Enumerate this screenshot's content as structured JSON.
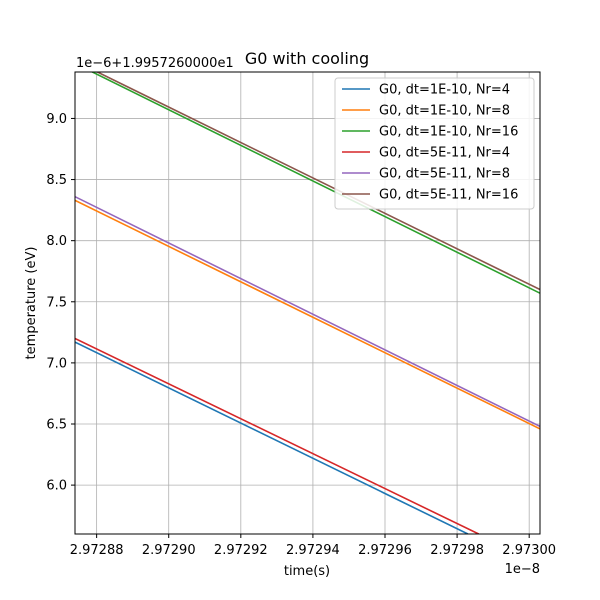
{
  "chart_data": {
    "type": "line",
    "title": "G0 with cooling",
    "xlabel": "time(s)",
    "ylabel": "temperature (eV)",
    "x_offset_label": "1e−8",
    "y_offset_label": "1e−6+1.9957260000e1",
    "xlim": [
      2.972874,
      2.973003
    ],
    "ylim": [
      5.6,
      9.38
    ],
    "x_ticks": [
      2.97288,
      2.9729,
      2.97292,
      2.97294,
      2.97296,
      2.97298,
      2.973
    ],
    "x_tick_labels": [
      "2.97288",
      "2.97290",
      "2.97292",
      "2.97294",
      "2.97296",
      "2.97298",
      "2.97300"
    ],
    "y_ticks": [
      6.0,
      6.5,
      7.0,
      7.5,
      8.0,
      8.5,
      9.0
    ],
    "y_tick_labels": [
      "6.0",
      "6.5",
      "7.0",
      "7.5",
      "8.0",
      "8.5",
      "9.0"
    ],
    "grid": true,
    "legend_position": "top-right",
    "series": [
      {
        "name": "G0, dt=1E-10, Nr=4",
        "color": "#1f77b4",
        "x": [
          2.972874,
          2.972983
        ],
        "y": [
          7.17,
          5.6
        ]
      },
      {
        "name": "G0, dt=1E-10, Nr=8",
        "color": "#ff7f0e",
        "x": [
          2.972874,
          2.973003
        ],
        "y": [
          8.33,
          6.46
        ]
      },
      {
        "name": "G0, dt=1E-10, Nr=16",
        "color": "#2ca02c",
        "x": [
          2.972874,
          2.973003
        ],
        "y": [
          9.45,
          7.57
        ]
      },
      {
        "name": "G0, dt=5E-11, Nr=4",
        "color": "#d62728",
        "x": [
          2.972874,
          2.972986
        ],
        "y": [
          7.2,
          5.6
        ]
      },
      {
        "name": "G0, dt=5E-11, Nr=8",
        "color": "#9467bd",
        "x": [
          2.972874,
          2.973003
        ],
        "y": [
          8.36,
          6.48
        ]
      },
      {
        "name": "G0, dt=5E-11, Nr=16",
        "color": "#8c564b",
        "x": [
          2.972874,
          2.973003
        ],
        "y": [
          9.47,
          7.6
        ]
      }
    ]
  }
}
